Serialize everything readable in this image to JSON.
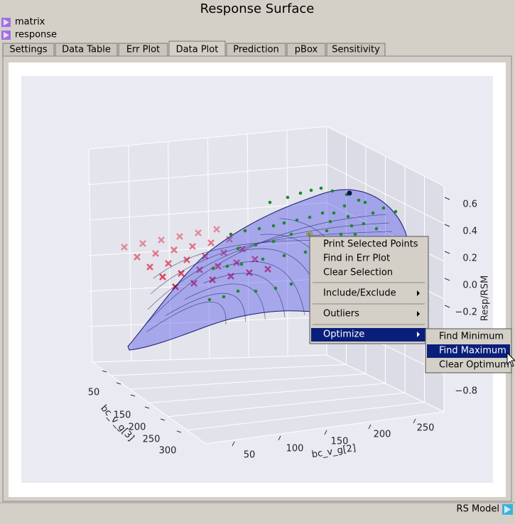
{
  "window": {
    "title": "Response Surface",
    "status": "RS Model"
  },
  "inputs": [
    "matrix",
    "response"
  ],
  "tabs": [
    "Settings",
    "Data Table",
    "Err Plot",
    "Data Plot",
    "Prediction",
    "pBox",
    "Sensitivity"
  ],
  "plot": {
    "x_label": "bc_v_g[2]",
    "x_ticks": [
      "50",
      "100",
      "150",
      "200",
      "250"
    ],
    "y_label": "bc_v_g[3]",
    "y_ticks": [
      "50",
      "150",
      "200",
      "250",
      "300"
    ],
    "z_label": "Resp/RSM",
    "z_ticks": [
      "0.6",
      "0.4",
      "0.2",
      "0.0",
      "−0.2",
      "−0.8"
    ]
  },
  "context_menu": {
    "items": [
      "Print Selected Points",
      "Find in Err Plot",
      "Clear Selection",
      "Include/Exclude",
      "Outliers",
      "Optimize"
    ]
  },
  "submenu": {
    "items": [
      "Find Minimum",
      "Find Maximum",
      "Clear Optimum"
    ]
  }
}
